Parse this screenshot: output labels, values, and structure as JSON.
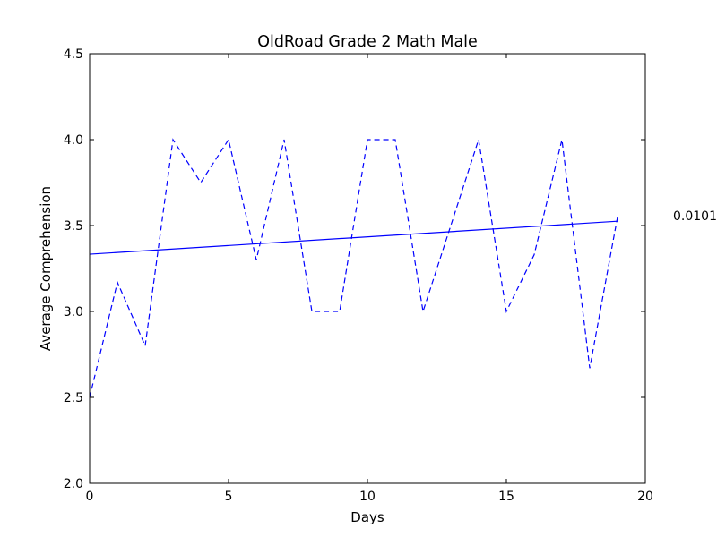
{
  "chart_data": {
    "type": "line",
    "title": "OldRoad Grade 2 Math Male",
    "xlabel": "Days",
    "ylabel": "Average Comprehension",
    "xlim": [
      0,
      20
    ],
    "ylim": [
      2.0,
      4.5
    ],
    "xticks": [
      0,
      5,
      10,
      15,
      20
    ],
    "yticks": [
      2.0,
      2.5,
      3.0,
      3.5,
      4.0,
      4.5
    ],
    "xtick_labels": [
      "0",
      "5",
      "10",
      "15",
      "20"
    ],
    "ytick_labels": [
      "2.0",
      "2.5",
      "3.0",
      "3.5",
      "4.0",
      "4.5"
    ],
    "grid": false,
    "series": [
      {
        "style": "dashed",
        "color": "#0000ff",
        "x": [
          0,
          1,
          2,
          3,
          4,
          5,
          6,
          7,
          8,
          9,
          10,
          11,
          12,
          13,
          14,
          15,
          16,
          17,
          18,
          19
        ],
        "y": [
          2.5,
          3.17,
          2.8,
          4.0,
          3.75,
          4.0,
          3.3,
          4.0,
          3.0,
          3.0,
          4.0,
          4.0,
          3.0,
          3.5,
          4.0,
          3.0,
          3.33,
          4.0,
          2.67,
          3.55
        ]
      },
      {
        "style": "solid",
        "color": "#0000ff",
        "x": [
          0,
          19
        ],
        "y": [
          3.333,
          3.525
        ]
      }
    ],
    "annotation": "0.0101"
  }
}
